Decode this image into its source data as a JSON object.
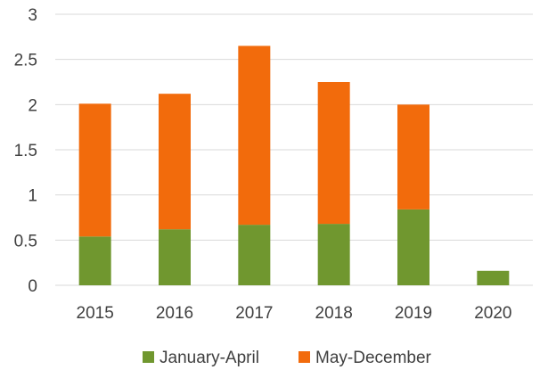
{
  "chart_data": {
    "type": "bar",
    "stacked": true,
    "categories": [
      "2015",
      "2016",
      "2017",
      "2018",
      "2019",
      "2020"
    ],
    "series": [
      {
        "name": "January-April",
        "color": "#70972f",
        "values": [
          0.54,
          0.62,
          0.67,
          0.68,
          0.84,
          0.16
        ]
      },
      {
        "name": "May-December",
        "color": "#f26b0c",
        "values": [
          1.47,
          1.5,
          1.98,
          1.57,
          1.16,
          0
        ]
      }
    ],
    "y_ticks": [
      "0",
      "0.5",
      "1",
      "1.5",
      "2",
      "2.5",
      "3"
    ],
    "ylim": [
      0,
      3
    ],
    "grid": true,
    "legend_position": "bottom"
  }
}
